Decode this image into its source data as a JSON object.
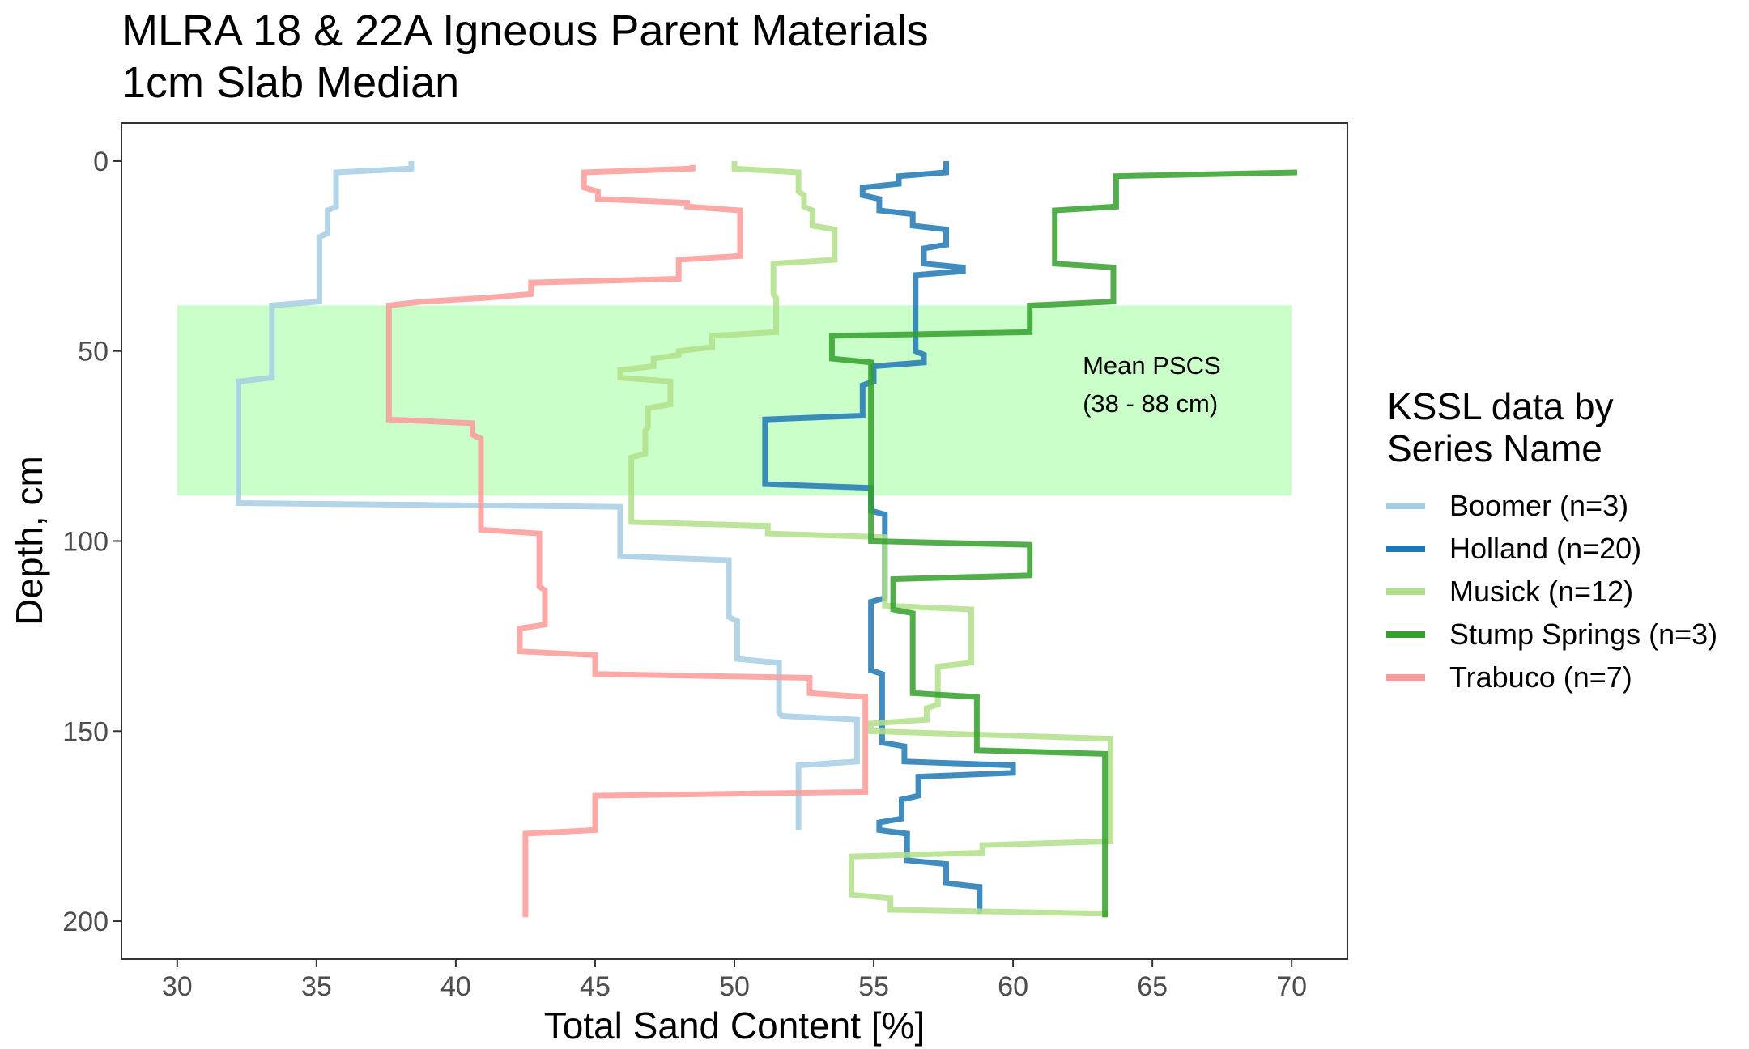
{
  "chart_data": {
    "type": "line",
    "title": "MLRA 18 & 22A Igneous Parent Materials",
    "subtitle": "1cm Slab Median",
    "xlabel": "Total Sand Content [%]",
    "ylabel": "Depth, cm",
    "xlim": [
      28,
      72
    ],
    "ylim": [
      210,
      -10
    ],
    "y_reversed": true,
    "xticks": [
      30,
      35,
      40,
      45,
      50,
      55,
      60,
      65,
      70
    ],
    "yticks": [
      0,
      50,
      100,
      150,
      200
    ],
    "grid": false,
    "legend": {
      "title": [
        "KSSL data by",
        "Series Name"
      ],
      "position": "right"
    },
    "annotation": {
      "band": {
        "x0": 30,
        "x1": 70,
        "y0": 38,
        "y1": 88,
        "color": "#b3ffb3"
      },
      "label_lines": [
        "Mean PSCS",
        "(38 - 88 cm)"
      ],
      "label_x": 62.5,
      "label_y": [
        56,
        66
      ]
    },
    "series": [
      {
        "name": "Boomer (n=3)",
        "color": "#a6cee3",
        "points": [
          [
            38.4,
            0
          ],
          [
            38.4,
            2
          ],
          [
            35.7,
            3
          ],
          [
            35.7,
            12
          ],
          [
            35.4,
            13
          ],
          [
            35.4,
            19
          ],
          [
            35.1,
            20
          ],
          [
            35.1,
            37
          ],
          [
            33.4,
            38
          ],
          [
            33.4,
            57
          ],
          [
            32.2,
            58
          ],
          [
            32.2,
            90
          ],
          [
            45.9,
            91
          ],
          [
            45.9,
            104
          ],
          [
            49.8,
            105
          ],
          [
            49.8,
            120
          ],
          [
            50.1,
            121
          ],
          [
            50.1,
            131
          ],
          [
            51.6,
            132
          ],
          [
            51.6,
            145
          ],
          [
            51.7,
            146
          ],
          [
            51.7,
            146
          ],
          [
            54.4,
            147
          ],
          [
            54.4,
            158
          ],
          [
            52.3,
            159
          ],
          [
            52.3,
            176
          ]
        ]
      },
      {
        "name": "Holland (n=20)",
        "color": "#1f78b4",
        "points": [
          [
            57.6,
            0
          ],
          [
            57.6,
            3
          ],
          [
            55.9,
            4
          ],
          [
            55.9,
            6
          ],
          [
            54.6,
            7
          ],
          [
            54.6,
            9
          ],
          [
            55.2,
            10
          ],
          [
            55.2,
            13
          ],
          [
            56.4,
            14
          ],
          [
            56.4,
            17
          ],
          [
            57.6,
            18
          ],
          [
            57.6,
            22
          ],
          [
            56.8,
            23
          ],
          [
            56.8,
            27
          ],
          [
            58.2,
            28
          ],
          [
            58.2,
            29
          ],
          [
            56.5,
            30
          ],
          [
            56.5,
            36
          ],
          [
            56.5,
            50
          ],
          [
            56.8,
            51
          ],
          [
            56.8,
            53
          ],
          [
            55.0,
            54
          ],
          [
            55.0,
            58
          ],
          [
            54.6,
            59
          ],
          [
            54.6,
            67
          ],
          [
            51.1,
            68
          ],
          [
            51.1,
            84
          ],
          [
            51.1,
            85
          ],
          [
            54.9,
            86
          ],
          [
            54.9,
            92
          ],
          [
            55.4,
            93
          ],
          [
            55.4,
            115
          ],
          [
            54.9,
            116
          ],
          [
            54.9,
            134
          ],
          [
            55.3,
            135
          ],
          [
            55.3,
            153
          ],
          [
            56.1,
            154
          ],
          [
            56.1,
            158
          ],
          [
            60.0,
            159
          ],
          [
            60.0,
            161
          ],
          [
            56.6,
            162
          ],
          [
            56.6,
            167
          ],
          [
            56.0,
            168
          ],
          [
            56.0,
            173
          ],
          [
            55.2,
            174
          ],
          [
            55.2,
            176
          ],
          [
            56.2,
            177
          ],
          [
            56.2,
            184
          ],
          [
            57.6,
            185
          ],
          [
            57.6,
            190
          ],
          [
            58.8,
            191
          ],
          [
            58.8,
            198
          ]
        ]
      },
      {
        "name": "Musick (n=12)",
        "color": "#b2df8a",
        "points": [
          [
            50.0,
            0
          ],
          [
            50.0,
            2
          ],
          [
            52.3,
            3
          ],
          [
            52.3,
            8
          ],
          [
            52.5,
            9
          ],
          [
            52.5,
            12
          ],
          [
            52.8,
            13
          ],
          [
            52.8,
            17
          ],
          [
            53.6,
            18
          ],
          [
            53.6,
            26
          ],
          [
            51.4,
            27
          ],
          [
            51.4,
            35
          ],
          [
            51.5,
            36
          ],
          [
            51.5,
            45
          ],
          [
            49.2,
            46
          ],
          [
            49.2,
            49
          ],
          [
            48.0,
            50
          ],
          [
            48.0,
            51
          ],
          [
            47.1,
            52
          ],
          [
            47.1,
            54
          ],
          [
            45.9,
            55
          ],
          [
            45.9,
            57
          ],
          [
            47.7,
            58
          ],
          [
            47.7,
            64
          ],
          [
            46.9,
            65
          ],
          [
            46.9,
            70
          ],
          [
            46.8,
            71
          ],
          [
            46.8,
            77
          ],
          [
            46.3,
            78
          ],
          [
            46.3,
            90
          ],
          [
            46.3,
            95
          ],
          [
            51.2,
            96
          ],
          [
            51.2,
            98
          ],
          [
            55.4,
            99
          ],
          [
            55.4,
            117
          ],
          [
            58.5,
            118
          ],
          [
            58.5,
            132
          ],
          [
            57.3,
            133
          ],
          [
            57.3,
            143
          ],
          [
            56.9,
            144
          ],
          [
            56.9,
            147
          ],
          [
            54.9,
            148
          ],
          [
            54.9,
            150
          ],
          [
            63.5,
            152
          ],
          [
            63.5,
            179
          ],
          [
            58.9,
            180
          ],
          [
            58.9,
            182
          ],
          [
            54.2,
            183
          ],
          [
            54.2,
            193
          ],
          [
            55.6,
            194
          ],
          [
            55.6,
            197
          ],
          [
            63.3,
            198
          ],
          [
            63.3,
            199
          ]
        ]
      },
      {
        "name": "Stump Springs (n=3)",
        "color": "#33a02c",
        "points": [
          [
            70.2,
            3
          ],
          [
            63.7,
            4
          ],
          [
            63.7,
            12
          ],
          [
            61.5,
            13
          ],
          [
            61.5,
            27
          ],
          [
            63.6,
            28
          ],
          [
            63.6,
            37
          ],
          [
            60.6,
            38
          ],
          [
            60.6,
            45
          ],
          [
            53.5,
            46
          ],
          [
            53.5,
            52
          ],
          [
            54.9,
            53
          ],
          [
            54.9,
            100
          ],
          [
            60.6,
            101
          ],
          [
            60.6,
            109
          ],
          [
            55.7,
            110
          ],
          [
            55.7,
            118
          ],
          [
            56.4,
            119
          ],
          [
            56.4,
            140
          ],
          [
            58.7,
            141
          ],
          [
            58.7,
            155
          ],
          [
            63.3,
            156
          ],
          [
            63.3,
            199
          ]
        ]
      },
      {
        "name": "Trabuco (n=7)",
        "color": "#fb9a99",
        "points": [
          [
            48.5,
            1
          ],
          [
            48.5,
            2
          ],
          [
            44.6,
            3
          ],
          [
            44.6,
            7
          ],
          [
            45.1,
            8
          ],
          [
            45.1,
            10
          ],
          [
            48.3,
            11
          ],
          [
            48.3,
            12
          ],
          [
            50.2,
            13
          ],
          [
            50.2,
            25
          ],
          [
            48.0,
            26
          ],
          [
            48.0,
            31
          ],
          [
            42.7,
            32
          ],
          [
            42.7,
            35
          ],
          [
            41.1,
            36
          ],
          [
            41.1,
            36
          ],
          [
            38.8,
            37
          ],
          [
            37.6,
            38
          ],
          [
            37.6,
            68
          ],
          [
            40.6,
            69
          ],
          [
            40.6,
            72
          ],
          [
            40.9,
            73
          ],
          [
            40.9,
            97
          ],
          [
            43.0,
            98
          ],
          [
            43.0,
            112
          ],
          [
            43.2,
            113
          ],
          [
            43.2,
            122
          ],
          [
            42.3,
            123
          ],
          [
            42.3,
            129
          ],
          [
            45.0,
            130
          ],
          [
            45.0,
            135
          ],
          [
            52.7,
            136
          ],
          [
            52.7,
            140
          ],
          [
            54.7,
            141
          ],
          [
            54.7,
            166
          ],
          [
            45.0,
            167
          ],
          [
            45.0,
            176
          ],
          [
            42.5,
            177
          ],
          [
            42.5,
            199
          ]
        ]
      }
    ]
  }
}
